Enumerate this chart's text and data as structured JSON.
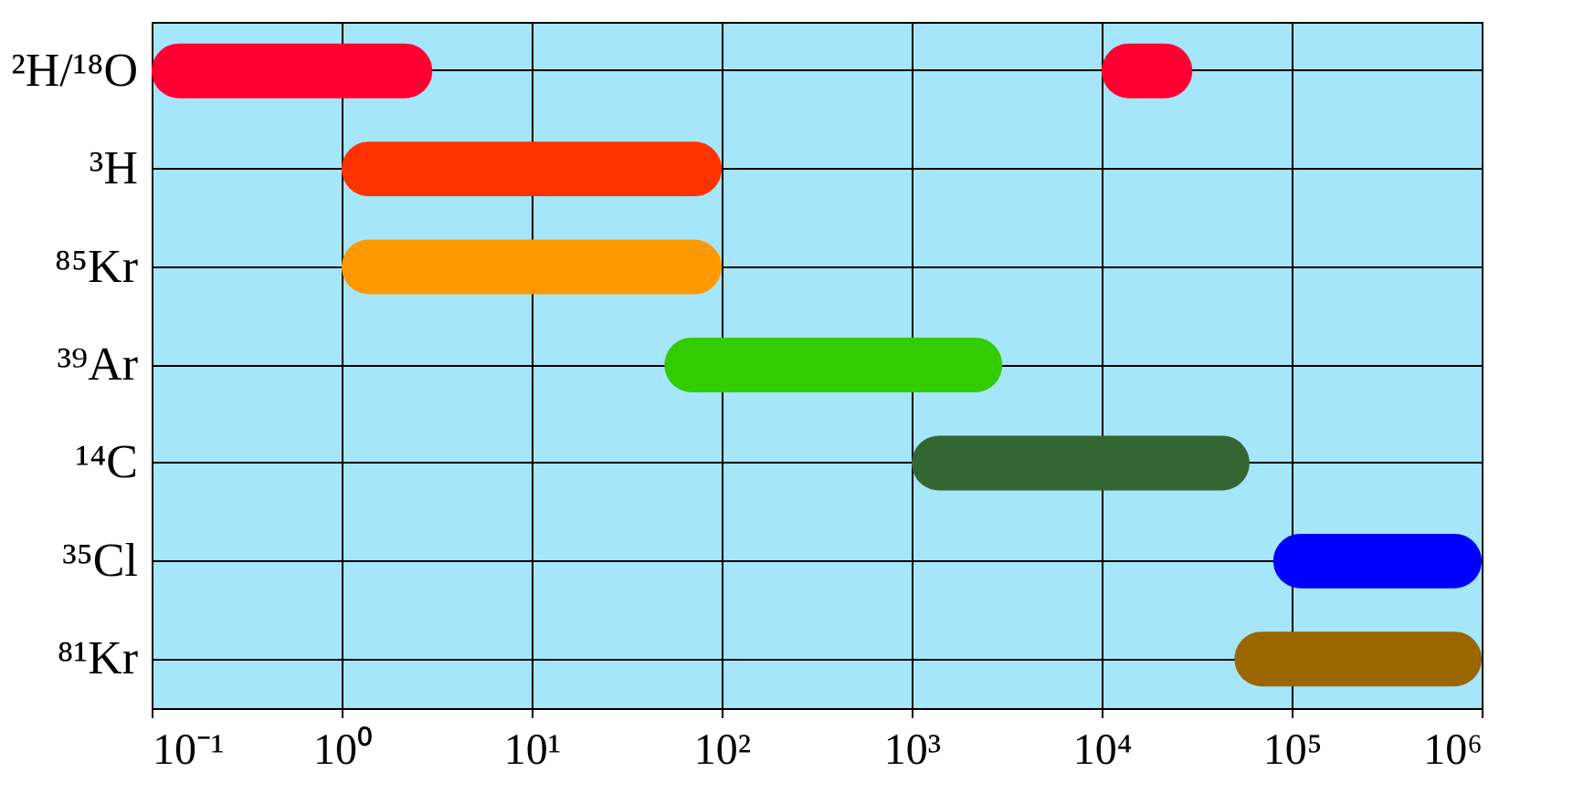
{
  "chart_data": {
    "type": "bar",
    "orientation": "horizontal",
    "categories": [
      "²H/¹⁸O",
      "³H",
      "⁸⁵Kr",
      "³⁹Ar",
      "¹⁴C",
      "³⁵Cl",
      "⁸¹Kr"
    ],
    "series": [
      {
        "colors": [
          "#ff0033",
          "#ff3300",
          "#ff9900",
          "#33cc00",
          "#336633",
          "#0000ff",
          "#996600"
        ],
        "base": [
          0.1,
          1,
          1,
          50,
          1000,
          80000,
          50000
        ],
        "values": [
          2.9,
          99,
          99,
          2950,
          59000,
          920000,
          950000
        ]
      },
      {
        "color": "#ff0033",
        "base": [
          10000,
          null,
          null,
          null,
          null,
          null,
          null
        ],
        "values": [
          20000,
          null,
          null,
          null,
          null,
          null,
          null
        ]
      }
    ],
    "log": "x",
    "xlim": [
      0.1,
      1000000
    ],
    "xticks": [
      {
        "value": 0.1,
        "label": "10⁻¹"
      },
      {
        "value": 1,
        "label": "10⁰"
      },
      {
        "value": 10,
        "label": "10¹"
      },
      {
        "value": 100,
        "label": "10²"
      },
      {
        "value": 1000,
        "label": "10³"
      },
      {
        "value": 10000,
        "label": "10⁴"
      },
      {
        "value": 100000,
        "label": "10⁵"
      },
      {
        "value": 1000000,
        "label": "10⁶"
      }
    ],
    "grid": true
  }
}
